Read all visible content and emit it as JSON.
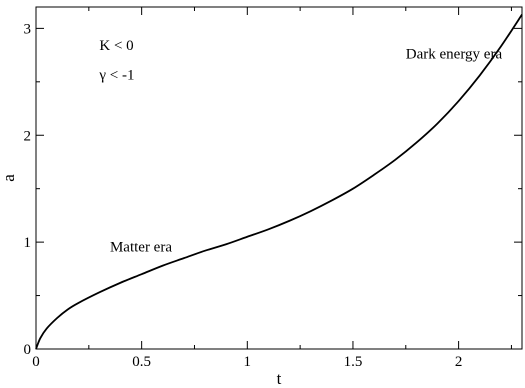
{
  "chart_data": {
    "type": "line",
    "title": "",
    "xlabel": "t",
    "ylabel": "a",
    "xlim": [
      0,
      2.3
    ],
    "ylim": [
      0,
      3.2
    ],
    "x_ticks": [
      0,
      0.5,
      1,
      1.5,
      2
    ],
    "x_tick_labels": [
      "0",
      "0.5",
      "1",
      "1.5",
      "2"
    ],
    "y_ticks": [
      0,
      1,
      2,
      3
    ],
    "y_tick_labels": [
      "0",
      "1",
      "2",
      "3"
    ],
    "grid": false,
    "series": [
      {
        "color": "#000000",
        "x": [
          0,
          0.02,
          0.05,
          0.1,
          0.15,
          0.2,
          0.3,
          0.4,
          0.5,
          0.6,
          0.7,
          0.8,
          0.9,
          1.0,
          1.1,
          1.2,
          1.3,
          1.4,
          1.5,
          1.6,
          1.7,
          1.8,
          1.9,
          2.0,
          2.1,
          2.2,
          2.3
        ],
        "y": [
          0,
          0.1,
          0.19,
          0.29,
          0.37,
          0.43,
          0.53,
          0.62,
          0.7,
          0.78,
          0.85,
          0.92,
          0.98,
          1.05,
          1.12,
          1.2,
          1.29,
          1.39,
          1.5,
          1.63,
          1.77,
          1.93,
          2.11,
          2.32,
          2.56,
          2.83,
          3.13
        ]
      }
    ],
    "annotations": [
      {
        "text": "K < 0",
        "x": 0.3,
        "y": 2.8
      },
      {
        "text": "γ < -1",
        "x": 0.3,
        "y": 2.52
      },
      {
        "text": "Dark energy era",
        "x": 1.75,
        "y": 2.72
      },
      {
        "text": "Matter era",
        "x": 0.35,
        "y": 0.91
      }
    ]
  }
}
